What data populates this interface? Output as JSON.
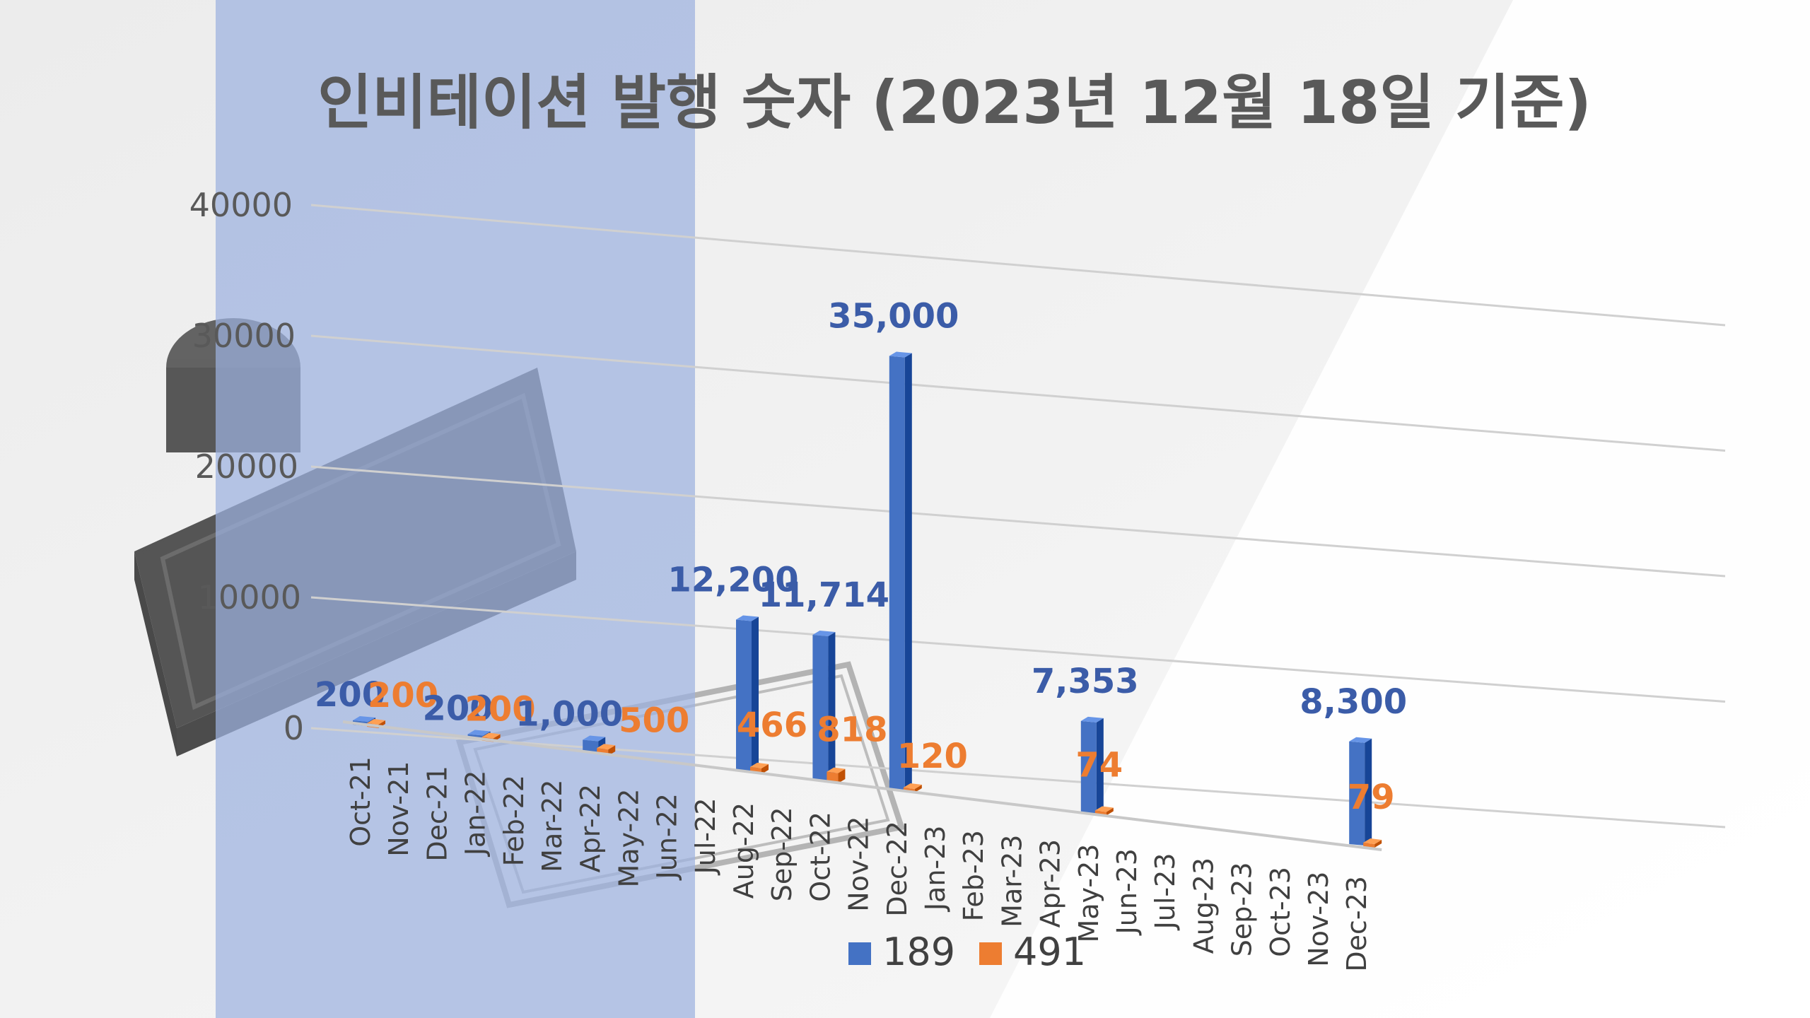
{
  "chart_data": {
    "type": "bar",
    "title": "인비테이션 발행 숫자 (2023년 12월 18일 기준)",
    "categories": [
      "Oct-21",
      "Nov-21",
      "Dec-21",
      "Jan-22",
      "Feb-22",
      "Mar-22",
      "Apr-22",
      "May-22",
      "Jun-22",
      "Jul-22",
      "Aug-22",
      "Sep-22",
      "Oct-22",
      "Nov-22",
      "Dec-22",
      "Jan-23",
      "Feb-23",
      "Mar-23",
      "Apr-23",
      "May-23",
      "Jun-23",
      "Jul-23",
      "Aug-23",
      "Sep-23",
      "Oct-23",
      "Nov-23",
      "Dec-23"
    ],
    "series": [
      {
        "name": "189",
        "color": "#4472c4",
        "values": [
          200,
          null,
          null,
          200,
          null,
          null,
          1000,
          null,
          null,
          null,
          12200,
          null,
          11714,
          null,
          35000,
          null,
          null,
          null,
          null,
          7353,
          null,
          null,
          null,
          null,
          null,
          null,
          8300
        ],
        "labels": [
          "200",
          "",
          "",
          "200",
          "",
          "",
          "1,000",
          "",
          "",
          "",
          "12,200",
          "",
          "11,714",
          "",
          "35,000",
          "",
          "",
          "",
          "",
          "7,353",
          "",
          "",
          "",
          "",
          "",
          "",
          "8,300"
        ]
      },
      {
        "name": "491",
        "color": "#ed7d31",
        "values": [
          200,
          null,
          null,
          200,
          null,
          null,
          500,
          null,
          null,
          null,
          466,
          null,
          818,
          null,
          120,
          null,
          null,
          null,
          null,
          74,
          null,
          null,
          null,
          null,
          null,
          null,
          79
        ],
        "labels": [
          "200",
          "",
          "",
          "200",
          "",
          "",
          "500",
          "",
          "",
          "",
          "466",
          "",
          "818",
          "",
          "120",
          "",
          "",
          "",
          "",
          "74",
          "",
          "",
          "",
          "",
          "",
          "",
          "79"
        ]
      }
    ],
    "yticks": [
      "0",
      "10000",
      "20000",
      "30000",
      "40000"
    ],
    "ylim": [
      0,
      40000
    ],
    "grid": true,
    "legend": "bottom"
  }
}
